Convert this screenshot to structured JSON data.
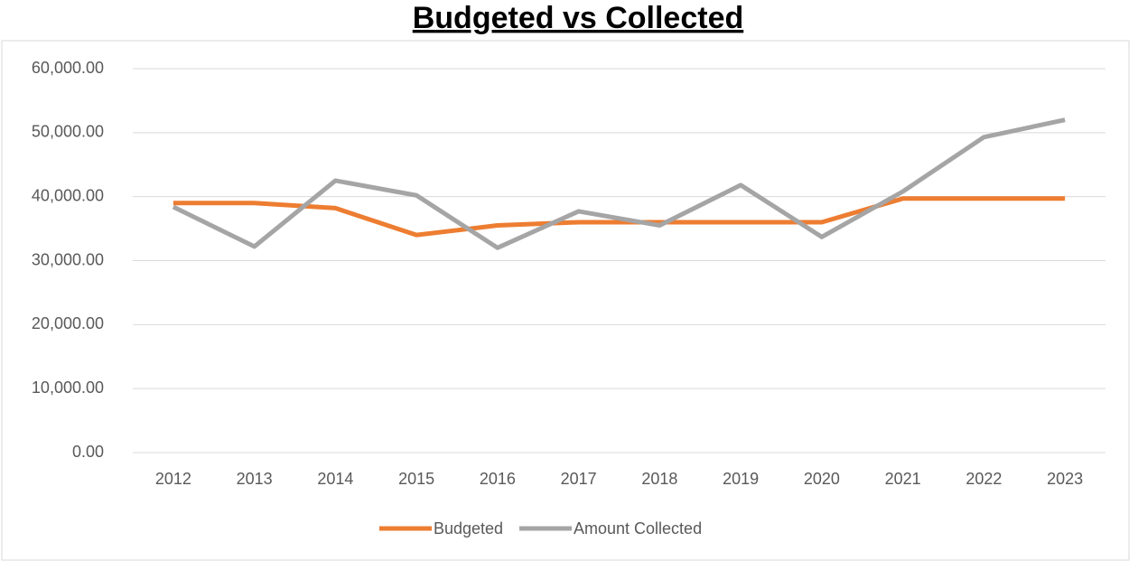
{
  "chart_data": {
    "type": "line",
    "title": "Budgeted vs Collected",
    "categories": [
      "2012",
      "2013",
      "2014",
      "2015",
      "2016",
      "2017",
      "2018",
      "2019",
      "2020",
      "2021",
      "2022",
      "2023"
    ],
    "series": [
      {
        "name": "Budgeted",
        "color": "#ed7d31",
        "values": [
          39000,
          39000,
          38200,
          34000,
          35500,
          36000,
          36000,
          36000,
          36000,
          39700,
          39700,
          39700
        ]
      },
      {
        "name": "Amount Collected",
        "color": "#a5a5a5",
        "values": [
          38400,
          32200,
          42500,
          40200,
          32000,
          37700,
          35500,
          41800,
          33700,
          40800,
          49300,
          52000
        ]
      }
    ],
    "ylim": [
      0,
      60000
    ],
    "yticks": [
      {
        "value": 0,
        "label": "0.00"
      },
      {
        "value": 10000,
        "label": "10,000.00"
      },
      {
        "value": 20000,
        "label": "20,000.00"
      },
      {
        "value": 30000,
        "label": "30,000.00"
      },
      {
        "value": 40000,
        "label": "40,000.00"
      },
      {
        "value": 50000,
        "label": "50,000.00"
      },
      {
        "value": 60000,
        "label": "60,000.00"
      }
    ],
    "grid": true,
    "legend": "bottom"
  }
}
